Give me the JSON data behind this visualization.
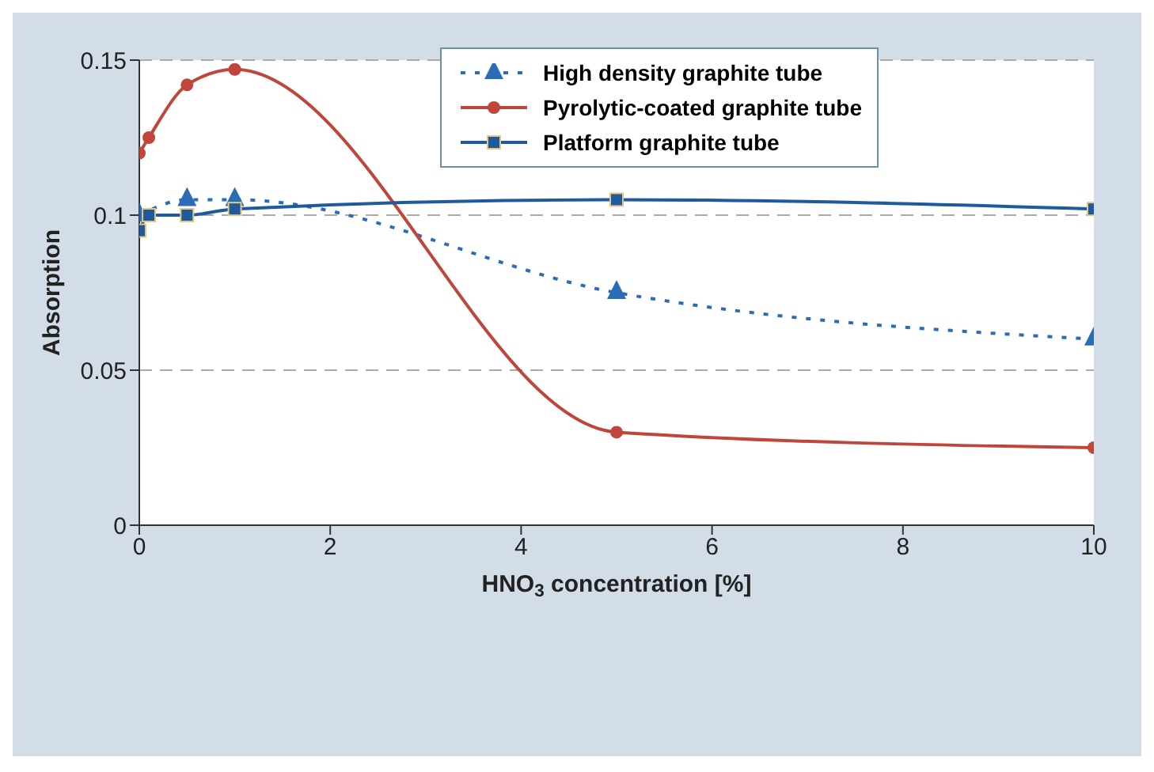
{
  "chart_data": {
    "type": "line",
    "xlabel": "HNO$_{3}$ concentration [%]",
    "ylabel": "Absorption",
    "xlim": [
      0,
      10
    ],
    "xticks": [
      0,
      2,
      4,
      6,
      8,
      10
    ],
    "ylim": [
      0,
      0.15
    ],
    "yticks": [
      0,
      0.05,
      0.1,
      0.15
    ],
    "grid": "y",
    "legend": "top",
    "series": [
      {
        "name": "High density graphite tube",
        "color": "#2a6db5",
        "x": [
          0,
          0.5,
          1,
          5,
          10
        ],
        "values": [
          0.1,
          0.105,
          0.105,
          0.075,
          0.06
        ],
        "marker": "triangle",
        "line_style": "dotted"
      },
      {
        "name": "Pyrolytic-coated graphite tube",
        "color": "#c0453a",
        "x": [
          0,
          0.1,
          0.5,
          1,
          5,
          10
        ],
        "values": [
          0.12,
          0.125,
          0.142,
          0.147,
          0.03,
          0.025
        ],
        "marker": "circle",
        "line_style": "solid"
      },
      {
        "name": "Platform graphite tube",
        "color": "#1f5a9e",
        "x": [
          0,
          0.1,
          0.5,
          1,
          5,
          10
        ],
        "values": [
          0.095,
          0.1,
          0.1,
          0.102,
          0.105,
          0.102
        ],
        "marker": "square",
        "line_style": "solid"
      }
    ]
  }
}
